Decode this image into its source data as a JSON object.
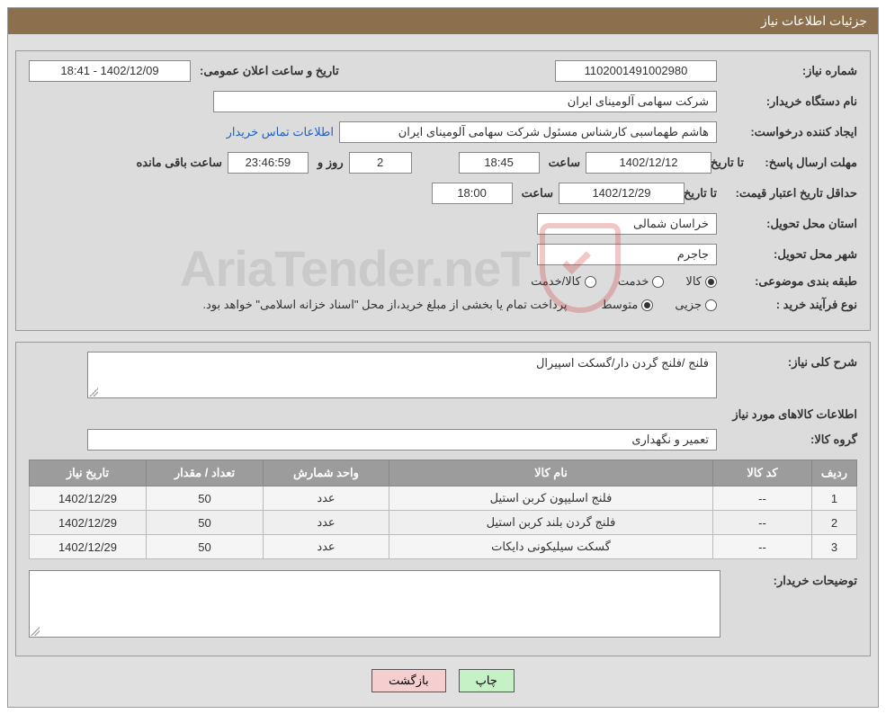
{
  "header": {
    "title": "جزئیات اطلاعات نیاز"
  },
  "form": {
    "need_number_label": "شماره نیاز:",
    "need_number": "1102001491002980",
    "announce_label": "تاریخ و ساعت اعلان عمومی:",
    "announce_value": "1402/12/09 - 18:41",
    "buyer_label": "نام دستگاه خریدار:",
    "buyer_value": "شرکت سهامی آلومینای ایران",
    "requester_label": "ایجاد کننده درخواست:",
    "requester_value": "هاشم طهماسبی کارشناس مسئول شرکت سهامی آلومینای ایران",
    "contact_link": "اطلاعات تماس خریدار",
    "deadline_label": "مهلت ارسال پاسخ:",
    "until_date_label": "تا تاریخ:",
    "deadline_date": "1402/12/12",
    "hour_label": "ساعت",
    "deadline_time": "18:45",
    "days_value": "2",
    "days_label": "روز و",
    "countdown": "23:46:59",
    "remaining_label": "ساعت باقی مانده",
    "validity_label": "حداقل تاریخ اعتبار قیمت:",
    "validity_date": "1402/12/29",
    "validity_time": "18:00",
    "province_label": "استان محل تحویل:",
    "province_value": "خراسان شمالی",
    "city_label": "شهر محل تحویل:",
    "city_value": "جاجرم",
    "category_label": "طبقه بندی موضوعی:",
    "cat_goods": "کالا",
    "cat_service": "خدمت",
    "cat_both": "کالا/خدمت",
    "process_label": "نوع فرآیند خرید :",
    "proc_partial": "جزیی",
    "proc_medium": "متوسط",
    "payment_note": "پرداخت تمام یا بخشی از مبلغ خرید،از محل \"اسناد خزانه اسلامی\" خواهد بود."
  },
  "detail": {
    "general_label": "شرح کلی نیاز:",
    "general_value": "فلنج /فلنج گردن دار/گسکت اسپیرال",
    "items_title": "اطلاعات کالاهای مورد نیاز",
    "group_label": "گروه کالا:",
    "group_value": "تعمیر و نگهداری",
    "buyer_notes_label": "توضیحات خریدار:"
  },
  "table": {
    "headers": {
      "row": "ردیف",
      "code": "کد کالا",
      "name": "نام کالا",
      "unit": "واحد شمارش",
      "qty": "تعداد / مقدار",
      "date": "تاریخ نیاز"
    },
    "rows": [
      {
        "idx": "1",
        "code": "--",
        "name": "فلنج اسلیپون کربن استیل",
        "unit": "عدد",
        "qty": "50",
        "date": "1402/12/29"
      },
      {
        "idx": "2",
        "code": "--",
        "name": "فلنج گردن بلند کربن استیل",
        "unit": "عدد",
        "qty": "50",
        "date": "1402/12/29"
      },
      {
        "idx": "3",
        "code": "--",
        "name": "گسکت سیلیکونی دایکات",
        "unit": "عدد",
        "qty": "50",
        "date": "1402/12/29"
      }
    ]
  },
  "buttons": {
    "print": "چاپ",
    "back": "بازگشت"
  },
  "colors": {
    "header_bg": "#8c704d",
    "panel_bg": "#dcdcdc",
    "outer_bg": "#e0e0e0",
    "th_bg": "#9c9c9c",
    "link": "#2060c0",
    "btn_green": "#c6f0c6",
    "btn_pink": "#f5cfcf"
  }
}
